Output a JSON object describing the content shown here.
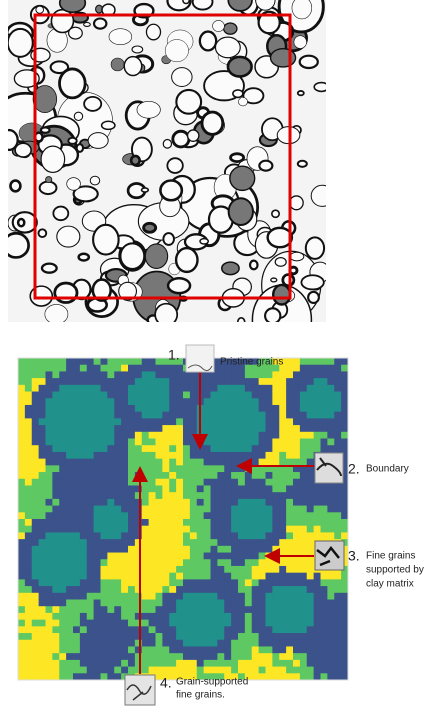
{
  "annotations": [
    {
      "number": "1.",
      "label_lines": [
        "Pristine grains"
      ]
    },
    {
      "number": "2.",
      "label_lines": [
        "Boundary"
      ]
    },
    {
      "number": "3.",
      "label_lines": [
        "Fine grains",
        "supported by",
        "clay matrix"
      ]
    },
    {
      "number": "4.",
      "label_lines": [
        "Grain-supported",
        "fine grains."
      ]
    }
  ]
}
